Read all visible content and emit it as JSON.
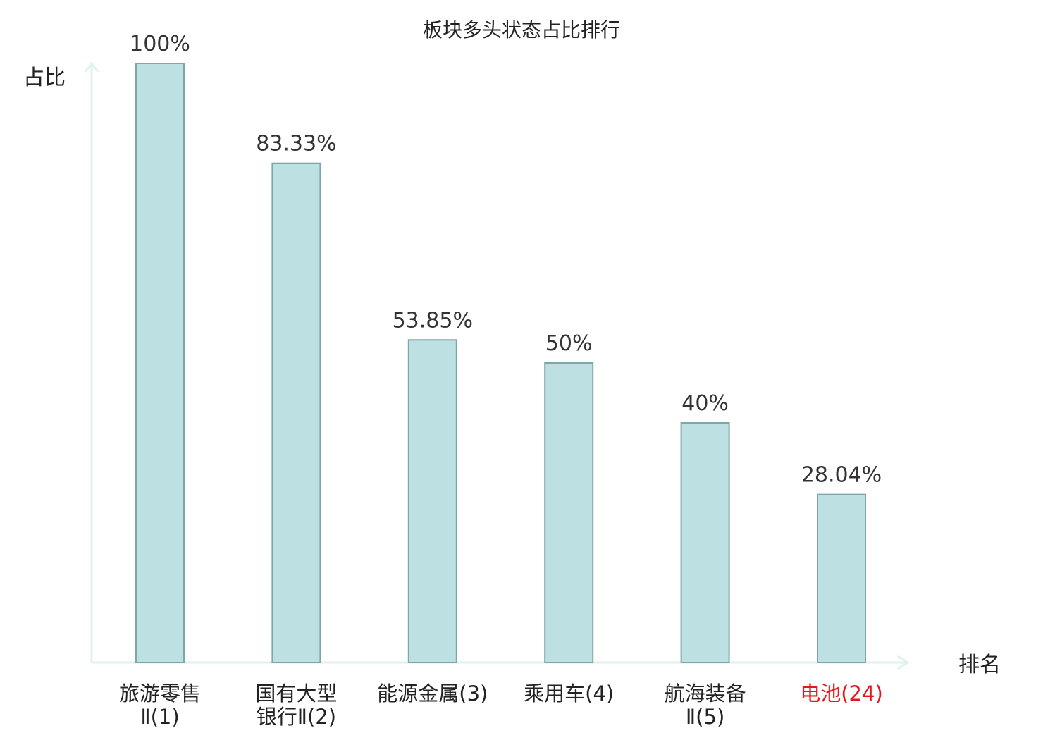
{
  "chart_data": {
    "type": "bar",
    "title": "板块多头状态占比排行",
    "ylabel": "占比",
    "xlabel": "排名",
    "ylim": [
      0,
      100
    ],
    "grid": false,
    "categories": [
      {
        "lines": [
          "旅游零售",
          "Ⅱ(1)"
        ]
      },
      {
        "lines": [
          "国有大型",
          "银行Ⅱ(2)"
        ]
      },
      {
        "lines": [
          "能源金属(3)"
        ]
      },
      {
        "lines": [
          "乘用车(4)"
        ]
      },
      {
        "lines": [
          "航海装备",
          "Ⅱ(5)"
        ]
      },
      {
        "lines": [
          "电池(24)"
        ],
        "highlight": true
      }
    ],
    "values": [
      100,
      83.33,
      53.85,
      50,
      40,
      28.04
    ],
    "value_labels": [
      "100%",
      "83.33%",
      "53.85%",
      "50%",
      "40%",
      "28.04%"
    ]
  },
  "colors": {
    "bar_fill": "#bde0e3",
    "bar_stroke": "#7fa6a9",
    "axis": "#e0f2ef",
    "text": "#222222",
    "value_text": "#333333",
    "highlight": "#e8161b"
  }
}
